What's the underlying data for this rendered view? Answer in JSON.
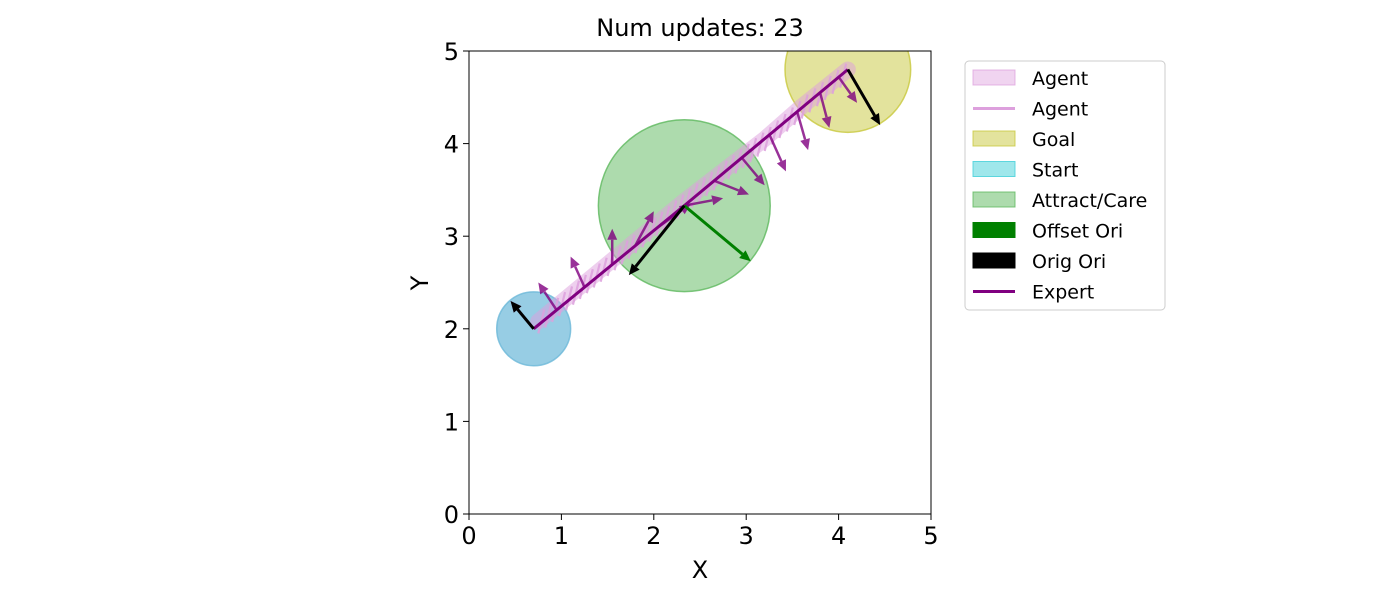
{
  "chart_data": {
    "type": "scatter",
    "title": "Num updates: 23",
    "xlabel": "X",
    "ylabel": "Y",
    "xlim": [
      0,
      5
    ],
    "ylim": [
      0,
      5
    ],
    "xticks": [
      "0",
      "1",
      "2",
      "3",
      "4",
      "5"
    ],
    "yticks": [
      "0",
      "1",
      "2",
      "3",
      "4",
      "5"
    ],
    "grid": false,
    "legend_position": "outside-right",
    "legend": [
      {
        "label": "Agent",
        "kind": "patch",
        "color": "#dda0dd",
        "opacity": 0.45
      },
      {
        "label": "Agent",
        "kind": "line",
        "color": "#dda0dd"
      },
      {
        "label": "Goal",
        "kind": "patch",
        "color": "#c8c83c",
        "opacity": 0.5
      },
      {
        "label": "Start",
        "kind": "patch",
        "color": "#40d0d8",
        "opacity": 0.5
      },
      {
        "label": "Attract/Care",
        "kind": "patch",
        "color": "#5cb85c",
        "opacity": 0.5
      },
      {
        "label": "Offset Ori",
        "kind": "patch",
        "color": "#008000",
        "opacity": 1
      },
      {
        "label": "Orig Ori",
        "kind": "patch",
        "color": "#000000",
        "opacity": 1
      },
      {
        "label": "Expert",
        "kind": "line",
        "color": "#800080"
      }
    ],
    "regions": {
      "start": {
        "center": [
          0.7,
          2.0
        ],
        "radius": 0.4,
        "color": "#6bb8d8",
        "opacity": 0.7
      },
      "attract": {
        "center": [
          2.33,
          3.33
        ],
        "radius": 0.93,
        "color": "#5cb85c",
        "opacity": 0.5
      },
      "goal": {
        "center": [
          4.1,
          4.8
        ],
        "radius": 0.68,
        "color": "#c8c83c",
        "opacity": 0.5
      }
    },
    "expert_path": {
      "color": "#800080",
      "points": [
        [
          0.7,
          2.0
        ],
        [
          2.33,
          3.33
        ],
        [
          4.1,
          4.8
        ]
      ]
    },
    "agent_path": {
      "color": "#dda0dd",
      "points": [
        [
          0.75,
          2.08
        ],
        [
          1.5,
          2.7
        ],
        [
          2.33,
          3.38
        ],
        [
          3.2,
          4.05
        ],
        [
          3.6,
          4.4
        ],
        [
          4.1,
          4.8
        ]
      ]
    },
    "orig_ori_arrows": [
      {
        "x": 0.7,
        "y": 2.0,
        "dx": -0.25,
        "dy": 0.3
      },
      {
        "x": 2.33,
        "y": 3.33,
        "dx": -0.6,
        "dy": -0.75
      },
      {
        "x": 4.1,
        "y": 4.8,
        "dx": 0.35,
        "dy": -0.6
      }
    ],
    "offset_ori_arrows": [
      {
        "x": 2.33,
        "y": 3.33,
        "dx": 0.72,
        "dy": -0.6
      }
    ],
    "expert_arrows": [
      {
        "x": 0.7,
        "y": 2.0,
        "dx": -0.25,
        "dy": 0.3
      },
      {
        "x": 0.95,
        "y": 2.2,
        "dx": -0.2,
        "dy": 0.3
      },
      {
        "x": 1.25,
        "y": 2.45,
        "dx": -0.15,
        "dy": 0.33
      },
      {
        "x": 1.55,
        "y": 2.7,
        "dx": 0.0,
        "dy": 0.38
      },
      {
        "x": 1.8,
        "y": 2.9,
        "dx": 0.2,
        "dy": 0.37
      },
      {
        "x": 2.05,
        "y": 3.1,
        "dx": 0.35,
        "dy": 0.25
      },
      {
        "x": 2.33,
        "y": 3.33,
        "dx": 0.42,
        "dy": 0.08
      },
      {
        "x": 2.65,
        "y": 3.6,
        "dx": 0.38,
        "dy": -0.15
      },
      {
        "x": 2.95,
        "y": 3.85,
        "dx": 0.25,
        "dy": -0.3
      },
      {
        "x": 3.25,
        "y": 4.1,
        "dx": 0.18,
        "dy": -0.4
      },
      {
        "x": 3.55,
        "y": 4.35,
        "dx": 0.12,
        "dy": -0.42
      },
      {
        "x": 3.8,
        "y": 4.55,
        "dx": 0.1,
        "dy": -0.38
      },
      {
        "x": 4.0,
        "y": 4.72,
        "dx": 0.2,
        "dy": -0.28
      }
    ]
  }
}
